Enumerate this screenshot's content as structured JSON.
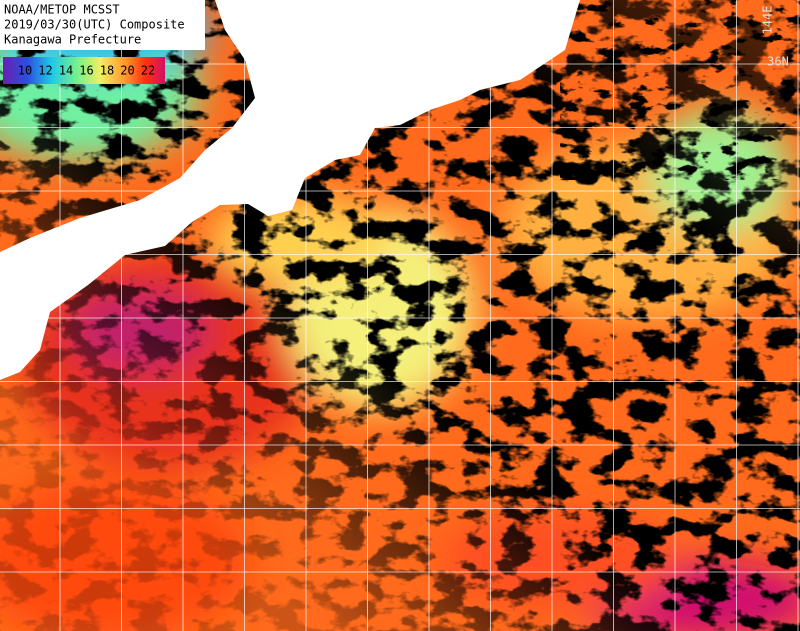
{
  "header": {
    "lines": [
      "NOAA/METOP MCSST",
      "2019/03/30(UTC) Composite",
      "Kanagawa Prefecture"
    ]
  },
  "legend": {
    "labels": [
      10,
      12,
      14,
      16,
      18,
      20,
      22
    ]
  },
  "grid_labels": {
    "lon": "144E",
    "lat": "36N"
  }
}
